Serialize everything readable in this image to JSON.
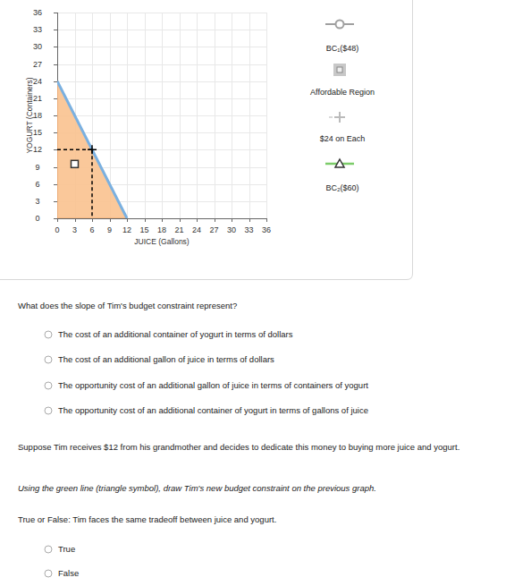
{
  "chart_data": {
    "type": "line",
    "x_label": "JUICE (Gallons)",
    "y_label": "YOGURT (Containers)",
    "xlim": [
      0,
      36
    ],
    "ylim": [
      0,
      36
    ],
    "xticks": [
      0,
      3,
      6,
      9,
      12,
      15,
      18,
      21,
      24,
      27,
      30,
      33,
      36
    ],
    "yticks": [
      0,
      3,
      6,
      9,
      12,
      15,
      18,
      21,
      24,
      27,
      30,
      33,
      36
    ],
    "grid": true,
    "legend": "right",
    "series": [
      {
        "name": "BC₁($48)",
        "color": "#7ab0e0",
        "marker": "circle",
        "x": [
          0,
          12
        ],
        "values": [
          24,
          0
        ]
      },
      {
        "name": "Affordable Region",
        "color": "#f9c28f",
        "marker": "square",
        "x": [
          3
        ],
        "values": [
          9.5
        ]
      },
      {
        "name": "$24 on Each",
        "color": "#000000",
        "marker": "plus",
        "line_style": "dashed",
        "x": [
          6
        ],
        "values": [
          12
        ]
      },
      {
        "name": "BC₂($60)",
        "color": "#7ccc6a",
        "marker": "triangle",
        "x": [],
        "values": []
      }
    ]
  },
  "page": {
    "q1": {
      "prompt": "What does the slope of Tim's budget constraint represent?",
      "options": [
        "The cost of an additional container of yogurt in terms of dollars",
        "The cost of an additional gallon of juice in terms of dollars",
        "The opportunity cost of an additional gallon of juice in terms of containers of yogurt",
        "The opportunity cost of an additional container of yogurt in terms of gallons of juice"
      ]
    },
    "scenario": "Suppose Tim receives $12 from his grandmother and decides to dedicate this money to buying more juice and yogurt.",
    "instruction": "Using the green line (triangle symbol), draw Tim's new budget constraint on the previous graph.",
    "q2": {
      "prompt": "True or False: Tim faces the same tradeoff between juice and yogurt.",
      "options": [
        "True",
        "False"
      ]
    }
  }
}
